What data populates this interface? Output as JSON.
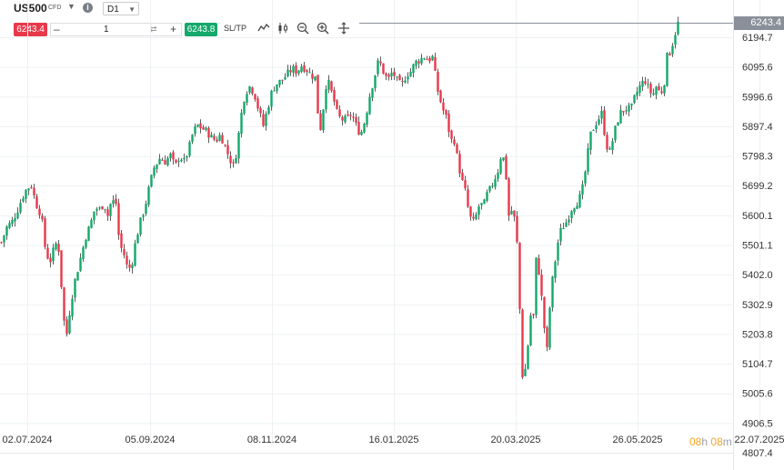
{
  "toolbar": {
    "symbol": "US500",
    "instrument_type": "CFD",
    "timeframe": "D1",
    "sell_price": "6243.4",
    "quantity": "1",
    "buy_price": "6243.8",
    "sltp_label": "SL/TP"
  },
  "icons": [
    "chevron-down-icon",
    "info-icon",
    "swap-icon",
    "line-chart-icon",
    "candles-icon",
    "zoom-out-icon",
    "zoom-in-icon",
    "crosshair-icon"
  ],
  "timer": {
    "hours": "08",
    "h_unit": "h",
    "minutes": "08",
    "m_unit": "m"
  },
  "colors": {
    "up": "#14a86b",
    "down": "#e8394b",
    "wick": "#333333",
    "flag": "#8a9099",
    "timer": "#f5a623"
  },
  "chart_data": {
    "type": "candlestick",
    "symbol": "US500",
    "timeframe": "D1",
    "current_price": "6243.4",
    "y_ticks": [
      "6194.7",
      "6095.6",
      "5996.6",
      "5897.4",
      "5798.3",
      "5699.2",
      "5600.1",
      "5501.1",
      "5402.0",
      "5302.9",
      "5203.8",
      "5104.7",
      "5005.6",
      "4906.5",
      "4807.4"
    ],
    "x_ticks": [
      "02.07.2024",
      "05.09.2024",
      "08.11.2024",
      "16.01.2025",
      "20.03.2025",
      "26.05.2025",
      "22.07.2025"
    ],
    "ylim": [
      4807.4,
      6243.4
    ],
    "grid": true,
    "close_path": [
      [
        0,
        5510
      ],
      [
        6,
        5560
      ],
      [
        12,
        5580
      ],
      [
        18,
        5620
      ],
      [
        23,
        5660
      ],
      [
        28,
        5690
      ],
      [
        33,
        5700
      ],
      [
        38,
        5640
      ],
      [
        44,
        5600
      ],
      [
        49,
        5470
      ],
      [
        54,
        5450
      ],
      [
        58,
        5490
      ],
      [
        62,
        5520
      ],
      [
        65,
        5420
      ],
      [
        68,
        5260
      ],
      [
        72,
        5205
      ],
      [
        76,
        5300
      ],
      [
        80,
        5370
      ],
      [
        84,
        5420
      ],
      [
        88,
        5470
      ],
      [
        93,
        5530
      ],
      [
        98,
        5570
      ],
      [
        103,
        5625
      ],
      [
        108,
        5620
      ],
      [
        113,
        5640
      ],
      [
        117,
        5600
      ],
      [
        121,
        5650
      ],
      [
        126,
        5640
      ],
      [
        130,
        5500
      ],
      [
        134,
        5480
      ],
      [
        139,
        5420
      ],
      [
        143,
        5430
      ],
      [
        148,
        5520
      ],
      [
        153,
        5580
      ],
      [
        158,
        5630
      ],
      [
        163,
        5700
      ],
      [
        168,
        5760
      ],
      [
        174,
        5790
      ],
      [
        180,
        5780
      ],
      [
        186,
        5800
      ],
      [
        191,
        5760
      ],
      [
        196,
        5800
      ],
      [
        201,
        5780
      ],
      [
        206,
        5820
      ],
      [
        211,
        5880
      ],
      [
        216,
        5900
      ],
      [
        221,
        5890
      ],
      [
        226,
        5880
      ],
      [
        231,
        5860
      ],
      [
        236,
        5850
      ],
      [
        241,
        5870
      ],
      [
        246,
        5830
      ],
      [
        251,
        5790
      ],
      [
        256,
        5760
      ],
      [
        260,
        5850
      ],
      [
        264,
        5940
      ],
      [
        268,
        6010
      ],
      [
        273,
        6030
      ],
      [
        278,
        6010
      ],
      [
        283,
        5950
      ],
      [
        288,
        5900
      ],
      [
        293,
        5960
      ],
      [
        298,
        6020
      ],
      [
        303,
        6040
      ],
      [
        308,
        6050
      ],
      [
        314,
        6070
      ],
      [
        320,
        6090
      ],
      [
        325,
        6080
      ],
      [
        330,
        6100
      ],
      [
        335,
        6090
      ],
      [
        340,
        6070
      ],
      [
        345,
        6060
      ],
      [
        350,
        5870
      ],
      [
        354,
        5960
      ],
      [
        358,
        6060
      ],
      [
        362,
        6020
      ],
      [
        366,
        5980
      ],
      [
        370,
        5930
      ],
      [
        375,
        5920
      ],
      [
        380,
        5920
      ],
      [
        385,
        5940
      ],
      [
        390,
        5900
      ],
      [
        395,
        5870
      ],
      [
        400,
        5920
      ],
      [
        405,
        6000
      ],
      [
        410,
        6060
      ],
      [
        415,
        6120
      ],
      [
        420,
        6080
      ],
      [
        425,
        6050
      ],
      [
        430,
        6080
      ],
      [
        435,
        6050
      ],
      [
        440,
        6030
      ],
      [
        445,
        6070
      ],
      [
        450,
        6080
      ],
      [
        455,
        6110
      ],
      [
        460,
        6120
      ],
      [
        465,
        6130
      ],
      [
        470,
        6120
      ],
      [
        475,
        6130
      ],
      [
        478,
        6040
      ],
      [
        482,
        5990
      ],
      [
        486,
        5950
      ],
      [
        490,
        5920
      ],
      [
        494,
        5850
      ],
      [
        498,
        5850
      ],
      [
        502,
        5780
      ],
      [
        506,
        5720
      ],
      [
        510,
        5680
      ],
      [
        514,
        5610
      ],
      [
        518,
        5570
      ],
      [
        522,
        5600
      ],
      [
        526,
        5640
      ],
      [
        530,
        5630
      ],
      [
        534,
        5670
      ],
      [
        538,
        5690
      ],
      [
        542,
        5720
      ],
      [
        546,
        5750
      ],
      [
        550,
        5810
      ],
      [
        554,
        5770
      ],
      [
        558,
        5600
      ],
      [
        562,
        5620
      ],
      [
        566,
        5560
      ],
      [
        569,
        5400
      ],
      [
        572,
        5060
      ],
      [
        575,
        5080
      ],
      [
        578,
        5100
      ],
      [
        581,
        5300
      ],
      [
        584,
        5200
      ],
      [
        588,
        5450
      ],
      [
        592,
        5400
      ],
      [
        596,
        5250
      ],
      [
        600,
        5150
      ],
      [
        604,
        5340
      ],
      [
        608,
        5430
      ],
      [
        612,
        5510
      ],
      [
        616,
        5560
      ],
      [
        620,
        5570
      ],
      [
        624,
        5600
      ],
      [
        628,
        5630
      ],
      [
        632,
        5640
      ],
      [
        636,
        5660
      ],
      [
        640,
        5700
      ],
      [
        644,
        5790
      ],
      [
        648,
        5870
      ],
      [
        652,
        5900
      ],
      [
        656,
        5920
      ],
      [
        660,
        5940
      ],
      [
        664,
        5860
      ],
      [
        668,
        5800
      ],
      [
        672,
        5850
      ],
      [
        676,
        5900
      ],
      [
        680,
        5940
      ],
      [
        684,
        5950
      ],
      [
        688,
        5960
      ],
      [
        692,
        5950
      ],
      [
        696,
        5990
      ],
      [
        700,
        6020
      ],
      [
        704,
        6040
      ],
      [
        708,
        6050
      ],
      [
        712,
        6020
      ],
      [
        716,
        6000
      ],
      [
        720,
        6030
      ],
      [
        724,
        6010
      ],
      [
        728,
        6020
      ],
      [
        732,
        6130
      ],
      [
        736,
        6150
      ],
      [
        740,
        6200
      ],
      [
        744,
        6240
      ],
      [
        746,
        6243
      ]
    ]
  }
}
